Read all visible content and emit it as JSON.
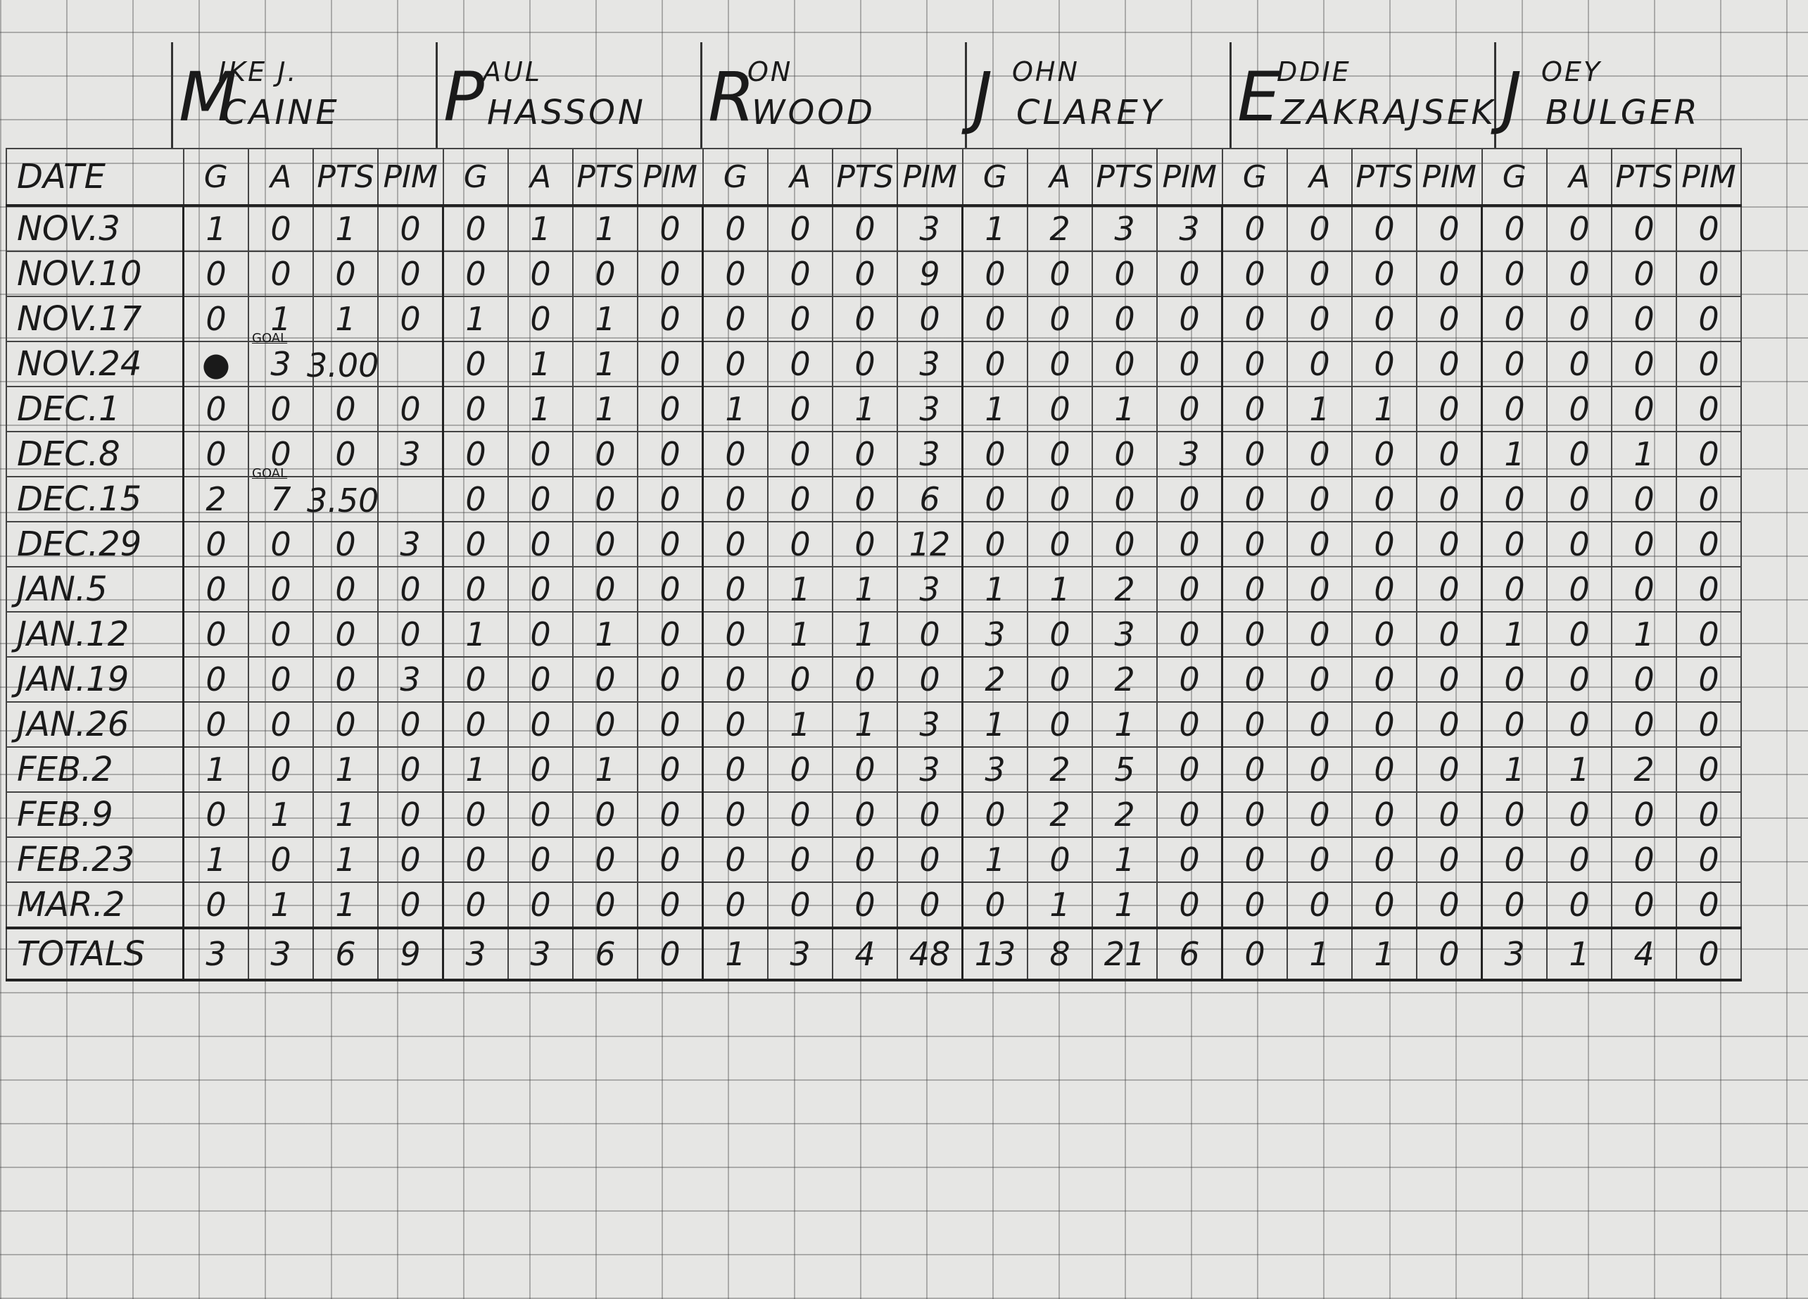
{
  "players": [
    {
      "first": "IKE J.",
      "initial": "M",
      "last": "CAINE",
      "full": "MIKE J. CAINE"
    },
    {
      "first": "AUL",
      "initial": "P",
      "last": "HASSON",
      "full": "PAUL HASSON"
    },
    {
      "first": "ON",
      "initial": "R",
      "last": "WOOD",
      "full": "RON WOOD"
    },
    {
      "first": "OHN",
      "initial": "J",
      "last": "CLAREY",
      "full": "JOHN CLAREY"
    },
    {
      "first": "DDIE",
      "initial": "E",
      "last": "ZAKRAJSEK",
      "full": "EDDIE ZAKRAJSEK"
    },
    {
      "first": "OEY",
      "initial": "J",
      "last": "BULGER",
      "full": "JOEY BULGER"
    }
  ],
  "columns": {
    "date": "DATE",
    "stats": [
      "G",
      "A",
      "PTS",
      "PIM"
    ]
  },
  "rows": [
    {
      "date": "NOV.3",
      "v": [
        [
          "1",
          "0",
          "1",
          "0"
        ],
        [
          "0",
          "1",
          "1",
          "0"
        ],
        [
          "0",
          "0",
          "0",
          "3"
        ],
        [
          "1",
          "2",
          "3",
          "3"
        ],
        [
          "0",
          "0",
          "0",
          "0"
        ],
        [
          "0",
          "0",
          "0",
          "0"
        ]
      ]
    },
    {
      "date": "NOV.10",
      "v": [
        [
          "0",
          "0",
          "0",
          "0"
        ],
        [
          "0",
          "0",
          "0",
          "0"
        ],
        [
          "0",
          "0",
          "0",
          "9"
        ],
        [
          "0",
          "0",
          "0",
          "0"
        ],
        [
          "0",
          "0",
          "0",
          "0"
        ],
        [
          "0",
          "0",
          "0",
          "0"
        ]
      ]
    },
    {
      "date": "NOV.17",
      "v": [
        [
          "0",
          "1",
          "1",
          "0"
        ],
        [
          "1",
          "0",
          "1",
          "0"
        ],
        [
          "0",
          "0",
          "0",
          "0"
        ],
        [
          "0",
          "0",
          "0",
          "0"
        ],
        [
          "0",
          "0",
          "0",
          "0"
        ],
        [
          "0",
          "0",
          "0",
          "0"
        ]
      ]
    },
    {
      "date": "NOV.24",
      "goal_note": "GOAL",
      "v": [
        [
          "●",
          "3",
          "3.00",
          ""
        ],
        [
          "0",
          "1",
          "1",
          "0"
        ],
        [
          "0",
          "0",
          "0",
          "3"
        ],
        [
          "0",
          "0",
          "0",
          "0"
        ],
        [
          "0",
          "0",
          "0",
          "0"
        ],
        [
          "0",
          "0",
          "0",
          "0"
        ]
      ]
    },
    {
      "date": "DEC.1",
      "v": [
        [
          "0",
          "0",
          "0",
          "0"
        ],
        [
          "0",
          "1",
          "1",
          "0"
        ],
        [
          "1",
          "0",
          "1",
          "3"
        ],
        [
          "1",
          "0",
          "1",
          "0"
        ],
        [
          "0",
          "1",
          "1",
          "0"
        ],
        [
          "0",
          "0",
          "0",
          "0"
        ]
      ]
    },
    {
      "date": "DEC.8",
      "v": [
        [
          "0",
          "0",
          "0",
          "3"
        ],
        [
          "0",
          "0",
          "0",
          "0"
        ],
        [
          "0",
          "0",
          "0",
          "3"
        ],
        [
          "0",
          "0",
          "0",
          "3"
        ],
        [
          "0",
          "0",
          "0",
          "0"
        ],
        [
          "1",
          "0",
          "1",
          "0"
        ]
      ]
    },
    {
      "date": "DEC.15",
      "goal_note": "GOAL",
      "v": [
        [
          "2",
          "7",
          "3.50",
          ""
        ],
        [
          "0",
          "0",
          "0",
          "0"
        ],
        [
          "0",
          "0",
          "0",
          "6"
        ],
        [
          "0",
          "0",
          "0",
          "0"
        ],
        [
          "0",
          "0",
          "0",
          "0"
        ],
        [
          "0",
          "0",
          "0",
          "0"
        ]
      ]
    },
    {
      "date": "DEC.29",
      "v": [
        [
          "0",
          "0",
          "0",
          "3"
        ],
        [
          "0",
          "0",
          "0",
          "0"
        ],
        [
          "0",
          "0",
          "0",
          "12"
        ],
        [
          "0",
          "0",
          "0",
          "0"
        ],
        [
          "0",
          "0",
          "0",
          "0"
        ],
        [
          "0",
          "0",
          "0",
          "0"
        ]
      ]
    },
    {
      "date": "JAN.5",
      "v": [
        [
          "0",
          "0",
          "0",
          "0"
        ],
        [
          "0",
          "0",
          "0",
          "0"
        ],
        [
          "0",
          "1",
          "1",
          "3"
        ],
        [
          "1",
          "1",
          "2",
          "0"
        ],
        [
          "0",
          "0",
          "0",
          "0"
        ],
        [
          "0",
          "0",
          "0",
          "0"
        ]
      ]
    },
    {
      "date": "JAN.12",
      "v": [
        [
          "0",
          "0",
          "0",
          "0"
        ],
        [
          "1",
          "0",
          "1",
          "0"
        ],
        [
          "0",
          "1",
          "1",
          "0"
        ],
        [
          "3",
          "0",
          "3",
          "0"
        ],
        [
          "0",
          "0",
          "0",
          "0"
        ],
        [
          "1",
          "0",
          "1",
          "0"
        ]
      ]
    },
    {
      "date": "JAN.19",
      "v": [
        [
          "0",
          "0",
          "0",
          "3"
        ],
        [
          "0",
          "0",
          "0",
          "0"
        ],
        [
          "0",
          "0",
          "0",
          "0"
        ],
        [
          "2",
          "0",
          "2",
          "0"
        ],
        [
          "0",
          "0",
          "0",
          "0"
        ],
        [
          "0",
          "0",
          "0",
          "0"
        ]
      ]
    },
    {
      "date": "JAN.26",
      "v": [
        [
          "0",
          "0",
          "0",
          "0"
        ],
        [
          "0",
          "0",
          "0",
          "0"
        ],
        [
          "0",
          "1",
          "1",
          "3"
        ],
        [
          "1",
          "0",
          "1",
          "0"
        ],
        [
          "0",
          "0",
          "0",
          "0"
        ],
        [
          "0",
          "0",
          "0",
          "0"
        ]
      ]
    },
    {
      "date": "FEB.2",
      "v": [
        [
          "1",
          "0",
          "1",
          "0"
        ],
        [
          "1",
          "0",
          "1",
          "0"
        ],
        [
          "0",
          "0",
          "0",
          "3"
        ],
        [
          "3",
          "2",
          "5",
          "0"
        ],
        [
          "0",
          "0",
          "0",
          "0"
        ],
        [
          "1",
          "1",
          "2",
          "0"
        ]
      ]
    },
    {
      "date": "FEB.9",
      "v": [
        [
          "0",
          "1",
          "1",
          "0"
        ],
        [
          "0",
          "0",
          "0",
          "0"
        ],
        [
          "0",
          "0",
          "0",
          "0"
        ],
        [
          "0",
          "2",
          "2",
          "0"
        ],
        [
          "0",
          "0",
          "0",
          "0"
        ],
        [
          "0",
          "0",
          "0",
          "0"
        ]
      ]
    },
    {
      "date": "FEB.23",
      "v": [
        [
          "1",
          "0",
          "1",
          "0"
        ],
        [
          "0",
          "0",
          "0",
          "0"
        ],
        [
          "0",
          "0",
          "0",
          "0"
        ],
        [
          "1",
          "0",
          "1",
          "0"
        ],
        [
          "0",
          "0",
          "0",
          "0"
        ],
        [
          "0",
          "0",
          "0",
          "0"
        ]
      ]
    },
    {
      "date": "MAR.2",
      "v": [
        [
          "0",
          "1",
          "1",
          "0"
        ],
        [
          "0",
          "0",
          "0",
          "0"
        ],
        [
          "0",
          "0",
          "0",
          "0"
        ],
        [
          "0",
          "1",
          "1",
          "0"
        ],
        [
          "0",
          "0",
          "0",
          "0"
        ],
        [
          "0",
          "0",
          "0",
          "0"
        ]
      ]
    }
  ],
  "totals": {
    "label": "TOTALS",
    "v": [
      [
        "3",
        "3",
        "6",
        "9"
      ],
      [
        "3",
        "3",
        "6",
        "0"
      ],
      [
        "1",
        "3",
        "4",
        "48"
      ],
      [
        "13",
        "8",
        "21",
        "6"
      ],
      [
        "0",
        "1",
        "1",
        "0"
      ],
      [
        "3",
        "1",
        "4",
        "0"
      ]
    ]
  }
}
